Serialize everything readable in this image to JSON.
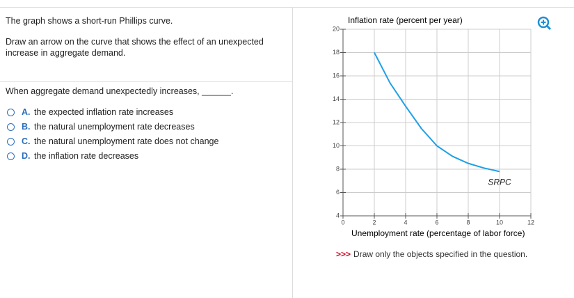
{
  "question": {
    "prompt": "The graph shows a short-run Phillips curve.",
    "instruction": "Draw an arrow on the curve that shows the effect of an unexpected increase in aggregate demand.",
    "stem": "When aggregate demand unexpectedly increases, ______.",
    "options": [
      {
        "letter": "A.",
        "text": "the expected inflation rate increases"
      },
      {
        "letter": "B.",
        "text": "the natural unemployment rate decreases"
      },
      {
        "letter": "C.",
        "text": "the natural unemployment rate does not change"
      },
      {
        "letter": "D.",
        "text": "the inflation rate decreases"
      }
    ]
  },
  "chart_data": {
    "type": "line",
    "y_label": "Inflation rate (percent per year)",
    "x_label": "Unemployment rate (percentage of labor force)",
    "x": [
      2,
      3,
      4,
      5,
      6,
      7,
      8,
      9,
      10
    ],
    "series": [
      {
        "name": "SRPC",
        "color": "#1ea0e6",
        "values": [
          18,
          15.4,
          13.4,
          11.5,
          10,
          9.1,
          8.5,
          8.1,
          7.8
        ]
      }
    ],
    "xlim": [
      0,
      12
    ],
    "ylim": [
      4,
      20
    ],
    "xticks": [
      0,
      2,
      4,
      6,
      8,
      10,
      12
    ],
    "yticks": [
      4,
      6,
      8,
      10,
      12,
      14,
      16,
      18,
      20
    ],
    "grid": true
  },
  "footer": {
    "marker": ">>>",
    "text": "Draw only the objects specified in the question."
  }
}
